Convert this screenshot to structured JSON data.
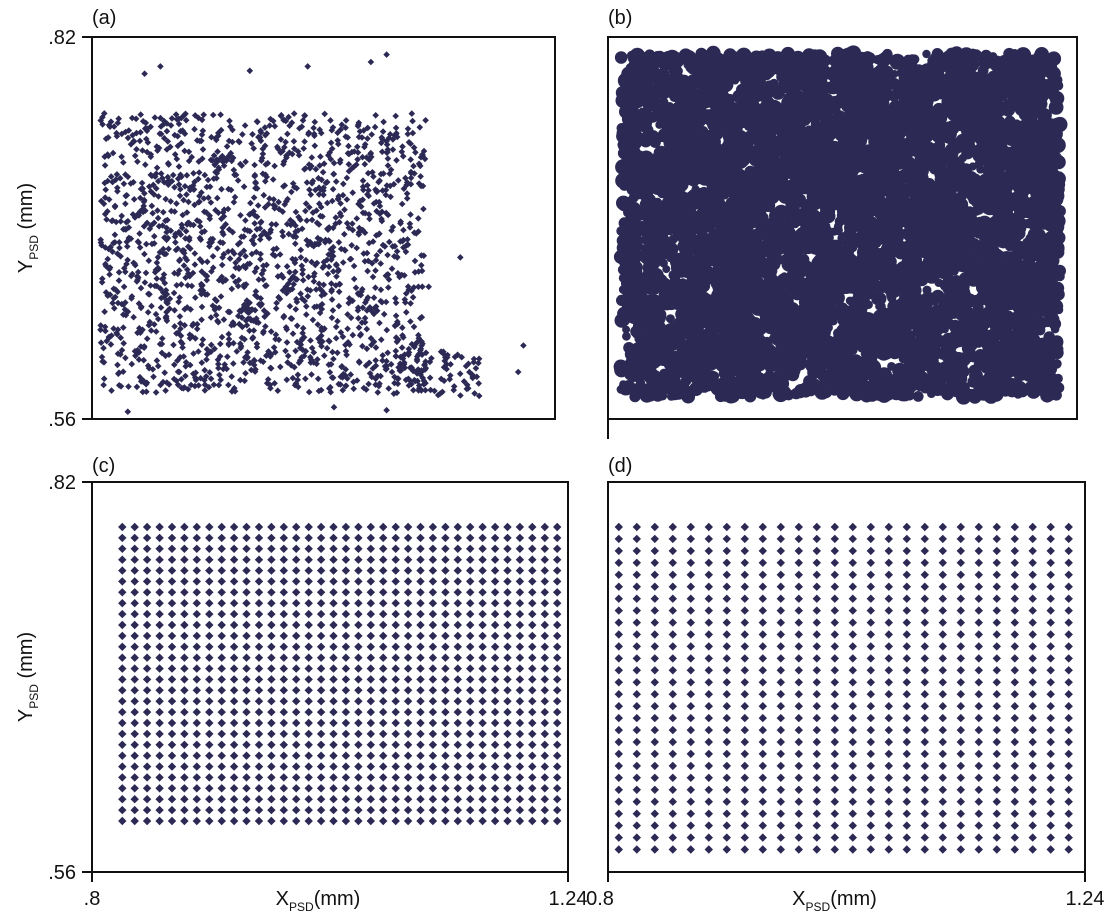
{
  "chart_data": [
    {
      "panel": "(a)",
      "type": "scatter",
      "xlim": [
        0.8,
        1.24
      ],
      "ylim": [
        0.56,
        0.82
      ],
      "y_ticks": [
        ".82",
        ".56"
      ],
      "ylabel": {
        "main": "Y",
        "sub": "PSD",
        "unit": " (mm)"
      },
      "pattern": "irregular-scatter",
      "marker_color": "#2c2a55"
    },
    {
      "panel": "(b)",
      "type": "scatter",
      "xlim": [
        0.8,
        1.24
      ],
      "ylim": [
        0.56,
        0.82
      ],
      "pattern": "dense-scatter",
      "marker_color": "#2c2a55"
    },
    {
      "panel": "(c)",
      "type": "scatter",
      "xlim": [
        0.8,
        1.24
      ],
      "ylim": [
        0.56,
        0.82
      ],
      "x_ticks": [
        ".8",
        "1.24"
      ],
      "y_ticks": [
        ".82",
        ".56"
      ],
      "xlabel": {
        "main": "X",
        "sub": "PSD",
        "unit": "(mm)"
      },
      "ylabel": {
        "main": "Y",
        "sub": "PSD",
        "unit": " (mm)"
      },
      "pattern": "grid",
      "grid": {
        "cols": 36,
        "rows": 28,
        "x_range": [
          0.828,
          1.23
        ],
        "y_range": [
          0.594,
          0.79
        ]
      },
      "marker_color": "#2c2a55"
    },
    {
      "panel": "(d)",
      "type": "scatter",
      "xlim": [
        0.8,
        1.24
      ],
      "ylim": [
        0.56,
        0.82
      ],
      "x_ticks": [
        "0.8",
        "1.24"
      ],
      "xlabel": {
        "main": "X",
        "sub": "PSD",
        "unit": "(mm)"
      },
      "pattern": "grid",
      "grid": {
        "cols": 26,
        "rows": 28,
        "x_range": [
          0.81,
          1.225
        ],
        "y_range": [
          0.575,
          0.79
        ]
      },
      "marker_color": "#2c2a55"
    }
  ]
}
